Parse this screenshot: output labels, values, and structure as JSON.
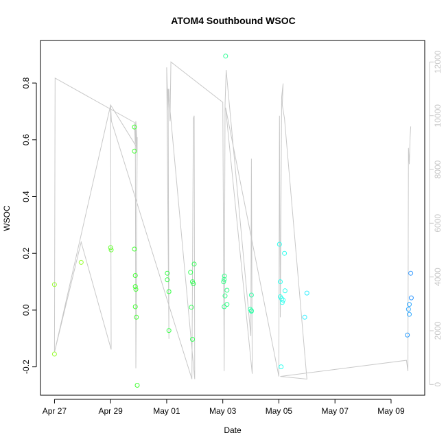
{
  "chart_data": {
    "type": "scatter",
    "title": "ATOM4 Southbound WSOC",
    "xlabel": "Date",
    "ylabel": "WSOC",
    "x_ticks": [
      "Apr 27",
      "Apr 29",
      "May 01",
      "May 03",
      "May 05",
      "May 07",
      "May 09"
    ],
    "x_tick_days": [
      0,
      2,
      4,
      6,
      8,
      10,
      12
    ],
    "xlim_days": [
      -0.5,
      13.2
    ],
    "y_ticks": [
      "-0.2",
      "0.0",
      "0.2",
      "0.4",
      "0.6",
      "0.8"
    ],
    "y_tick_values": [
      -0.2,
      0.0,
      0.2,
      0.4,
      0.6,
      0.8
    ],
    "ylim": [
      -0.3,
      0.95
    ],
    "y2_ticks": [
      "0",
      "2000",
      "4000",
      "6000",
      "8000",
      "10000",
      "12000"
    ],
    "y2_tick_values": [
      0,
      2000,
      4000,
      6000,
      8000,
      10000,
      12000
    ],
    "y2lim": [
      -400,
      12800
    ],
    "grid": false,
    "series": [
      {
        "marker": "open-circle",
        "points": [
          {
            "x": 0.0,
            "y": 0.09,
            "color": "#99ff33"
          },
          {
            "x": 0.0,
            "y": -0.155,
            "color": "#99ff33"
          },
          {
            "x": 0.95,
            "y": 0.168,
            "color": "#99ff33"
          },
          {
            "x": 2.0,
            "y": 0.22,
            "color": "#66ff33"
          },
          {
            "x": 2.02,
            "y": 0.212,
            "color": "#66ff33"
          },
          {
            "x": 2.85,
            "y": 0.645,
            "color": "#44ff33"
          },
          {
            "x": 2.85,
            "y": 0.56,
            "color": "#44ff33"
          },
          {
            "x": 2.85,
            "y": 0.215,
            "color": "#44ff33"
          },
          {
            "x": 2.88,
            "y": 0.122,
            "color": "#44ff33"
          },
          {
            "x": 2.88,
            "y": 0.083,
            "color": "#44ff33"
          },
          {
            "x": 2.9,
            "y": 0.073,
            "color": "#44ff33"
          },
          {
            "x": 2.88,
            "y": 0.012,
            "color": "#44ff33"
          },
          {
            "x": 2.92,
            "y": -0.025,
            "color": "#44ff33"
          },
          {
            "x": 2.95,
            "y": -0.265,
            "color": "#44ff33"
          },
          {
            "x": 4.02,
            "y": 0.13,
            "color": "#33ff44"
          },
          {
            "x": 4.02,
            "y": 0.107,
            "color": "#33ff44"
          },
          {
            "x": 4.08,
            "y": 0.065,
            "color": "#33ff44"
          },
          {
            "x": 4.08,
            "y": -0.072,
            "color": "#33ff44"
          },
          {
            "x": 4.85,
            "y": 0.133,
            "color": "#33ff55"
          },
          {
            "x": 4.88,
            "y": 0.01,
            "color": "#33ff55"
          },
          {
            "x": 4.92,
            "y": 0.1,
            "color": "#33ff55"
          },
          {
            "x": 4.95,
            "y": 0.093,
            "color": "#33ff55"
          },
          {
            "x": 4.98,
            "y": 0.162,
            "color": "#33ff55"
          },
          {
            "x": 4.92,
            "y": -0.103,
            "color": "#33ff55"
          },
          {
            "x": 6.1,
            "y": 0.895,
            "color": "#33ff99"
          },
          {
            "x": 6.06,
            "y": 0.12,
            "color": "#33ff88"
          },
          {
            "x": 6.05,
            "y": 0.108,
            "color": "#33ff88"
          },
          {
            "x": 6.03,
            "y": 0.1,
            "color": "#33ff88"
          },
          {
            "x": 6.15,
            "y": 0.07,
            "color": "#33ff88"
          },
          {
            "x": 6.08,
            "y": 0.05,
            "color": "#33ff88"
          },
          {
            "x": 6.15,
            "y": 0.02,
            "color": "#33ff88"
          },
          {
            "x": 6.05,
            "y": 0.012,
            "color": "#33ff88"
          },
          {
            "x": 6.98,
            "y": 0.003,
            "color": "#33ffaa"
          },
          {
            "x": 7.02,
            "y": 0.053,
            "color": "#33ffaa"
          },
          {
            "x": 7.02,
            "y": -0.002,
            "color": "#33ffaa"
          },
          {
            "x": 7.02,
            "y": -0.004,
            "color": "#33ffaa"
          },
          {
            "x": 8.02,
            "y": 0.232,
            "color": "#33ffee"
          },
          {
            "x": 8.05,
            "y": 0.1,
            "color": "#33ffee"
          },
          {
            "x": 8.05,
            "y": 0.047,
            "color": "#33ffee"
          },
          {
            "x": 8.1,
            "y": 0.04,
            "color": "#33ffee"
          },
          {
            "x": 8.15,
            "y": 0.035,
            "color": "#33ffee"
          },
          {
            "x": 8.12,
            "y": 0.027,
            "color": "#33ffee"
          },
          {
            "x": 8.2,
            "y": 0.2,
            "color": "#33ffee"
          },
          {
            "x": 8.22,
            "y": 0.068,
            "color": "#33ffee"
          },
          {
            "x": 8.08,
            "y": -0.2,
            "color": "#33ffee"
          },
          {
            "x": 9.0,
            "y": 0.06,
            "color": "#33eeff"
          },
          {
            "x": 8.92,
            "y": -0.025,
            "color": "#33eeff"
          },
          {
            "x": 12.7,
            "y": 0.13,
            "color": "#3399ff"
          },
          {
            "x": 12.72,
            "y": 0.043,
            "color": "#3399ff"
          },
          {
            "x": 12.65,
            "y": 0.02,
            "color": "#33aaff"
          },
          {
            "x": 12.62,
            "y": 0.003,
            "color": "#33aaff"
          },
          {
            "x": 12.65,
            "y": -0.015,
            "color": "#33aaff"
          },
          {
            "x": 12.58,
            "y": -0.088,
            "color": "#2299ff"
          }
        ]
      }
    ],
    "secondary_line": {
      "color": "#c8c8c8",
      "axis": "y2",
      "points": [
        [
          0.0,
          1200
        ],
        [
          0.02,
          11400
        ],
        [
          2.85,
          9750
        ],
        [
          2.88,
          8900
        ],
        [
          2.9,
          9500
        ],
        [
          2.92,
          8700
        ],
        [
          2.95,
          9200
        ],
        [
          2.9,
          600
        ],
        [
          2.88,
          9600
        ],
        [
          2.9,
          9800
        ],
        [
          2.95,
          8800
        ],
        [
          2.0,
          10400
        ],
        [
          2.02,
          1300
        ],
        [
          0.95,
          5300
        ],
        [
          0.0,
          1200
        ],
        [
          2.0,
          10400
        ],
        [
          2.03,
          9800
        ],
        [
          4.9,
          200
        ],
        [
          4.95,
          9900
        ],
        [
          4.98,
          10000
        ],
        [
          5.0,
          200
        ],
        [
          4.05,
          11000
        ],
        [
          4.08,
          1700
        ],
        [
          4.0,
          11800
        ],
        [
          4.05,
          10200
        ],
        [
          4.08,
          11000
        ],
        [
          4.12,
          9800
        ],
        [
          4.15,
          12000
        ],
        [
          6.0,
          10500
        ],
        [
          6.05,
          500
        ],
        [
          6.08,
          10400
        ],
        [
          6.12,
          11700
        ],
        [
          7.0,
          1800
        ],
        [
          7.02,
          8400
        ],
        [
          7.05,
          400
        ],
        [
          6.1,
          10300
        ],
        [
          8.0,
          300
        ],
        [
          8.02,
          10000
        ],
        [
          8.05,
          2500
        ],
        [
          8.1,
          10700
        ],
        [
          8.15,
          11200
        ],
        [
          8.12,
          10400
        ],
        [
          8.2,
          9900
        ],
        [
          9.0,
          200
        ],
        [
          8.05,
          300
        ],
        [
          12.55,
          900
        ],
        [
          12.6,
          500
        ],
        [
          12.62,
          8800
        ],
        [
          12.65,
          8200
        ],
        [
          12.68,
          9200
        ],
        [
          12.7,
          9600
        ]
      ]
    },
    "axis_color": "#000000",
    "right_axis_color": "#c8c8c8"
  }
}
